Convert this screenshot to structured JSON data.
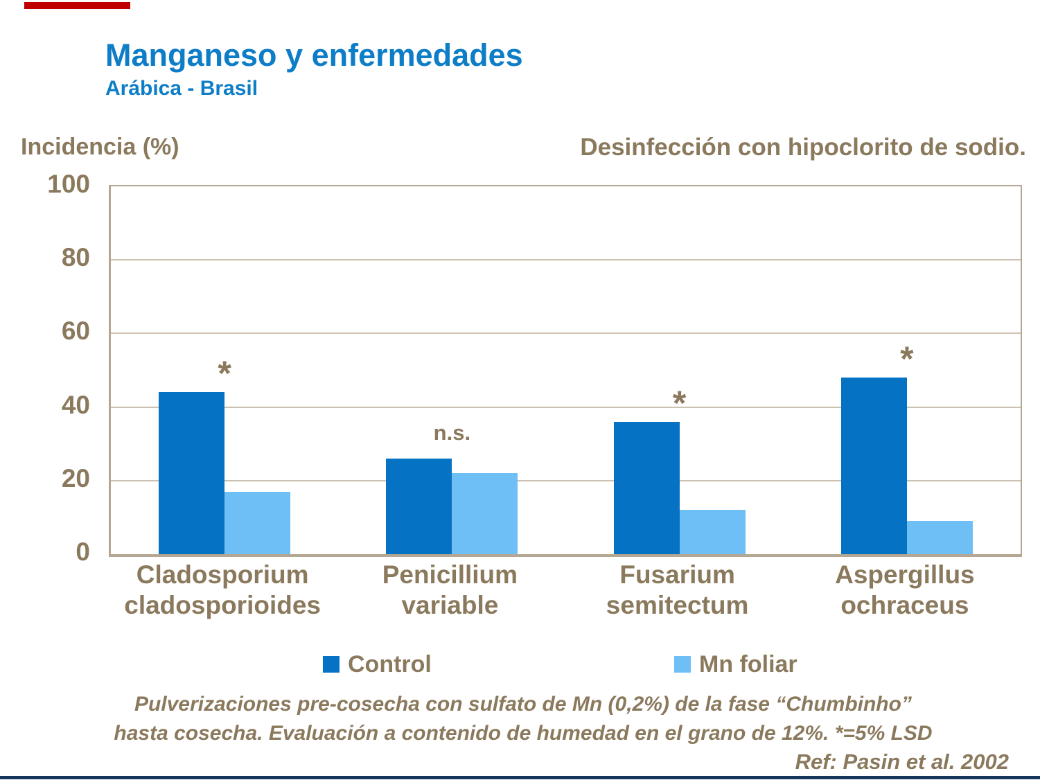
{
  "slide": {
    "title": "Manganeso y enfermedades",
    "subtitle": "Arábica - Brasil",
    "y_axis_title": "Incidencia (%)",
    "top_right_note": "Desinfección con hipoclorito de sodio.",
    "footnote_line1": "Pulverizaciones pre-cosecha con sulfato de Mn (0,2%) de la fase “Chumbinho”",
    "footnote_line2": "hasta cosecha. Evaluación a contenido de humedad en el grano de 12%. *=5% LSD",
    "reference": "Ref: Pasin et al. 2002"
  },
  "colors": {
    "title_blue": "#0D7DC8",
    "text_brown": "#8A795C",
    "gridline_tan": "#CDC2B1",
    "axis_tan": "#B5A794",
    "control_blue": "#0672C4",
    "mn_foliar_blue": "#6FBFF7",
    "accent_red": "#C00000",
    "bottom_bar_navy": "#16365C"
  },
  "chart_data": {
    "type": "bar",
    "title": "Manganeso y enfermedades",
    "subtitle": "Arábica - Brasil",
    "categories": [
      "Cladosporium\ncladosporioides",
      "Penicillium\nvariable",
      "Fusarium\nsemitectum",
      "Aspergillus\nochraceus"
    ],
    "series": [
      {
        "name": "Control",
        "color": "#0672C4",
        "values": [
          44,
          26,
          36,
          48
        ]
      },
      {
        "name": "Mn foliar",
        "color": "#6FBFF7",
        "values": [
          17,
          22,
          12,
          9
        ]
      }
    ],
    "annotations": [
      "*",
      "n.s.",
      "*",
      "*"
    ],
    "ylabel": "Incidencia (%)",
    "xlabel": "",
    "ylim": [
      0,
      100
    ],
    "yticks": [
      0,
      20,
      40,
      60,
      80,
      100
    ],
    "grid": true,
    "legend_position": "bottom"
  }
}
